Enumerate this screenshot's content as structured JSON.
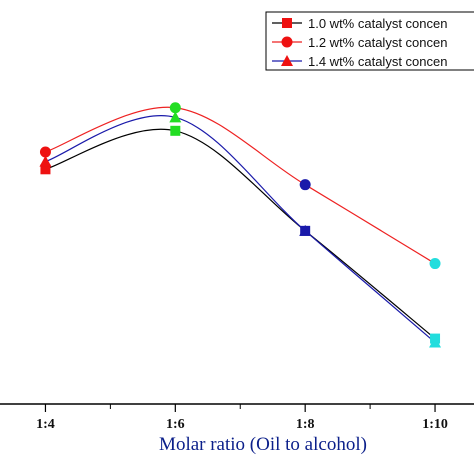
{
  "chart_data": {
    "type": "line",
    "xlabel": "Molar ratio (Oil to alcohol)",
    "x_tick_labels": [
      "1:4",
      "1:6",
      "1:8",
      "1:10"
    ],
    "x": [
      4,
      6,
      8,
      10
    ],
    "series": [
      {
        "name": "1.0 wt% catalyst concen",
        "line_color": "#000000",
        "marker": "square",
        "point_colors": [
          "#ee1111",
          "#22dd22",
          "#1a1aaa",
          "#22dddd"
        ],
        "values": [
          3.6,
          4.6,
          2.0,
          -0.8
        ]
      },
      {
        "name": "1.2 wt% catalyst concen",
        "line_color": "#ee2222",
        "marker": "circle",
        "point_colors": [
          "#ee1111",
          "#22dd22",
          "#1a1aaa",
          "#22dddd"
        ],
        "values": [
          4.05,
          5.2,
          3.2,
          1.15
        ]
      },
      {
        "name": "1.4 wt% catalyst concen",
        "line_color": "#1a1aaa",
        "marker": "triangle",
        "point_colors": [
          "#ee1111",
          "#22dd22",
          "#1a1aaa",
          "#22dddd"
        ],
        "values": [
          3.8,
          4.95,
          2.0,
          -0.9
        ]
      }
    ],
    "xlim": [
      3.3,
      10.6
    ],
    "ylim": [
      -2.5,
      8
    ],
    "legend_position": "top-right",
    "grid": false
  }
}
